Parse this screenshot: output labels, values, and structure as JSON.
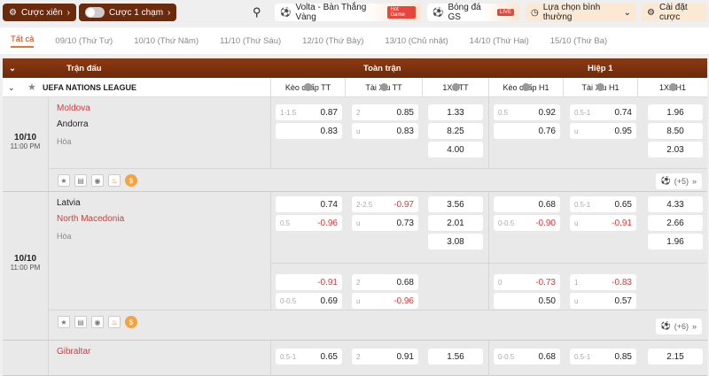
{
  "topbar": {
    "parlay": "Cược xiên",
    "one_tap": "Cược 1 chạm",
    "volta": "Volta - Bàn Thắng Vàng",
    "volta_badge": "Hot Game",
    "gs": "Bóng đá GS",
    "gs_badge": "LIVE",
    "view": "Lựa chọn bình thường",
    "settings": "Cài đặt cược"
  },
  "tabs": [
    "Tất cả",
    "09/10 (Thứ Tư)",
    "10/10 (Thứ Năm)",
    "11/10 (Thứ Sáu)",
    "12/10 (Thứ Bảy)",
    "13/10 (Chủ nhật)",
    "14/10 (Thứ Hai)",
    "15/10 (Thứ Ba)"
  ],
  "header": {
    "match": "Trận đấu",
    "full": "Toàn trận",
    "half": "Hiệp 1"
  },
  "league": {
    "name": "UEFA NATIONS LEAGUE",
    "columns": [
      "Kèo chấp TT",
      "Tài Xỉu TT",
      "1X2 TT",
      "Kèo chấp H1",
      "Tài Xỉu H1",
      "1X2 H1"
    ]
  },
  "colors": {
    "accent": "#6b2a0c",
    "negative": "#d43c3c",
    "team_highlight": "#d43c3c"
  },
  "matches": [
    {
      "date": "10/10",
      "time": "11:00 PM",
      "home": "Moldova",
      "away": "Andorra",
      "draw": "Hòa",
      "home_red": true,
      "more": "(+5)",
      "blocks": [
        [
          [
            {
              "l": "1-1.5",
              "v": "0.87"
            },
            {
              "l": "2",
              "v": "0.85"
            },
            {
              "v": "1.33"
            },
            {
              "l": "0.5",
              "v": "0.92"
            },
            {
              "l": "0.5-1",
              "v": "0.74"
            },
            {
              "v": "1.96"
            }
          ],
          [
            {
              "v": "0.83"
            },
            {
              "l": "u",
              "v": "0.83"
            },
            {
              "v": "8.25"
            },
            {
              "v": "0.76"
            },
            {
              "l": "u",
              "v": "0.95"
            },
            {
              "v": "8.50"
            }
          ],
          [
            null,
            null,
            {
              "v": "4.00"
            },
            null,
            null,
            {
              "v": "2.03"
            }
          ]
        ]
      ]
    },
    {
      "date": "10/10",
      "time": "11:00 PM",
      "home": "Latvia",
      "away": "North Macedonia",
      "draw": "Hòa",
      "home_red": false,
      "more": "(+6)",
      "blocks": [
        [
          [
            {
              "v": "0.74"
            },
            {
              "l": "2-2.5",
              "v": "-0.97"
            },
            {
              "v": "3.56"
            },
            {
              "v": "0.68"
            },
            {
              "l": "0.5-1",
              "v": "0.65"
            },
            {
              "v": "4.33"
            }
          ],
          [
            {
              "l": "0.5",
              "v": "-0.96"
            },
            {
              "l": "u",
              "v": "0.73"
            },
            {
              "v": "2.01"
            },
            {
              "l": "0-0.5",
              "v": "-0.90"
            },
            {
              "l": "u",
              "v": "-0.91"
            },
            {
              "v": "2.66"
            }
          ],
          [
            null,
            null,
            {
              "v": "3.08"
            },
            null,
            null,
            {
              "v": "1.96"
            }
          ]
        ],
        [
          [
            {
              "v": "-0.91"
            },
            {
              "l": "2",
              "v": "0.68"
            },
            null,
            {
              "l": "0",
              "v": "-0.73"
            },
            {
              "l": "1",
              "v": "-0.83"
            },
            null
          ],
          [
            {
              "l": "0-0.5",
              "v": "0.69"
            },
            {
              "l": "u",
              "v": "-0.96"
            },
            null,
            {
              "v": "0.50"
            },
            {
              "l": "u",
              "v": "0.57"
            },
            null
          ]
        ]
      ]
    },
    {
      "home": "Gibraltar",
      "home_red": true,
      "blocks": [
        [
          [
            {
              "l": "0.5-1",
              "v": "0.65"
            },
            {
              "l": "2",
              "v": "0.91"
            },
            {
              "v": "1.56"
            },
            {
              "l": "0-0.5",
              "v": "0.68"
            },
            {
              "l": "0.5-1",
              "v": "0.85"
            },
            {
              "v": "2.15"
            }
          ]
        ]
      ]
    }
  ]
}
